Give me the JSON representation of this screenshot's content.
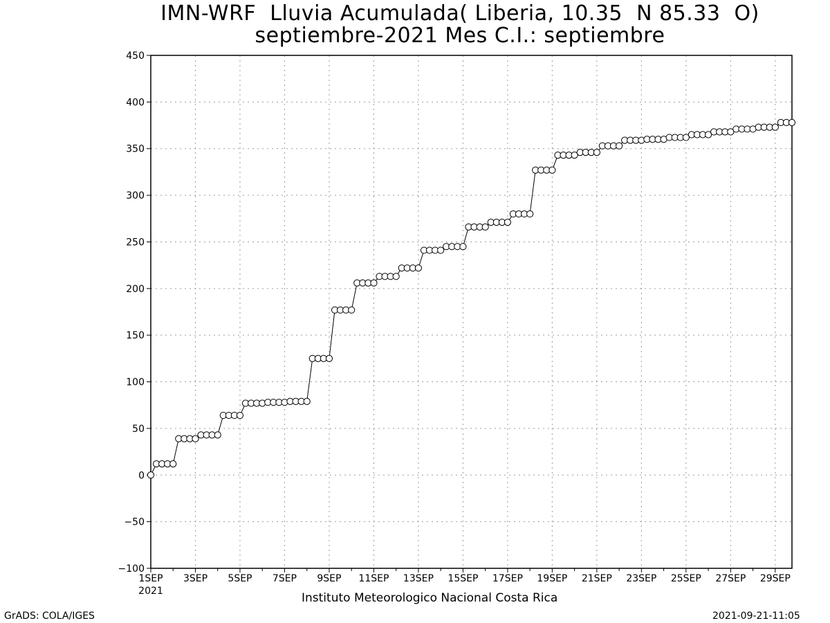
{
  "chart_data": {
    "type": "line",
    "title": "IMN-WRF  Lluvia Acumulada( Liberia, 10.35  N 85.33  O)",
    "subtitle": "septiembre-2021 Mes C.I.: septiembre",
    "xlabel": "",
    "ylabel": "",
    "ylim": [
      -100,
      450
    ],
    "yticks": [
      -100,
      -50,
      0,
      50,
      100,
      150,
      200,
      250,
      300,
      350,
      400,
      450
    ],
    "xlim": [
      "2021-09-01",
      "2021-09-30"
    ],
    "xtick_labels": [
      "1SEP",
      "3SEP",
      "5SEP",
      "7SEP",
      "9SEP",
      "11SEP",
      "13SEP",
      "15SEP",
      "17SEP",
      "19SEP",
      "21SEP",
      "23SEP",
      "25SEP",
      "27SEP",
      "29SEP"
    ],
    "x_year_label": "2021",
    "x_unit": "6-hourly steps",
    "grid": true,
    "series": [
      {
        "values": [
          0,
          12,
          12,
          12,
          12,
          39,
          39,
          39,
          39,
          43,
          43,
          43,
          43,
          64,
          64,
          64,
          64,
          77,
          77,
          77,
          77,
          78,
          78,
          78,
          78,
          79,
          79,
          79,
          79,
          125,
          125,
          125,
          125,
          177,
          177,
          177,
          177,
          206,
          206,
          206,
          206,
          213,
          213,
          213,
          213,
          222,
          222,
          222,
          222,
          241,
          241,
          241,
          241,
          245,
          245,
          245,
          245,
          266,
          266,
          266,
          266,
          271,
          271,
          271,
          271,
          280,
          280,
          280,
          280,
          327,
          327,
          327,
          327,
          343,
          343,
          343,
          343,
          346,
          346,
          346,
          346,
          353,
          353,
          353,
          353,
          359,
          359,
          359,
          359,
          360,
          360,
          360,
          360,
          362,
          362,
          362,
          362,
          365,
          365,
          365,
          365,
          368,
          368,
          368,
          368,
          371,
          371,
          371,
          371,
          373,
          373,
          373,
          373,
          378,
          378,
          378
        ]
      }
    ]
  },
  "footer": {
    "institution": "Instituto Meteorologico Nacional Costa Rica",
    "source": "GrADS: COLA/IGES",
    "timestamp": "2021-09-21-11:05"
  }
}
